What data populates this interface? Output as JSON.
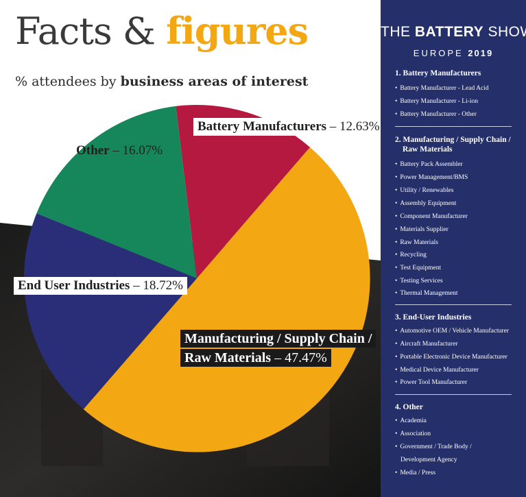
{
  "title": {
    "part1": "Facts & ",
    "part2": "figures"
  },
  "subtitle": {
    "prefix": "% attendees by ",
    "bold": "business areas of interest"
  },
  "colors": {
    "accent": "#f3a712",
    "panel": "#25306b",
    "battery": "#b5193f",
    "manufacturing": "#f3a712",
    "end_user": "#2a2e78",
    "other": "#16875a"
  },
  "chart_data": {
    "type": "pie",
    "series": [
      {
        "name": "Battery Manufacturers",
        "value": 12.63,
        "label": "12.63%",
        "color": "#b5193f"
      },
      {
        "name": "Manufacturing / Supply Chain / Raw Materials",
        "line1": "Manufacturing / Supply Chain /",
        "line2": "Raw Materials",
        "value": 47.47,
        "label": "47.47%",
        "color": "#f3a712"
      },
      {
        "name": "End User Industries",
        "value": 18.72,
        "label": "18.72%",
        "color": "#2a2e78"
      },
      {
        "name": "Other",
        "value": 16.07,
        "label": "16.07%",
        "color": "#16875a"
      }
    ]
  },
  "panel": {
    "brand": {
      "pre": "THE ",
      "bold": "BATTERY",
      "post": " SHOW"
    },
    "edition": {
      "text": "EUROPE ",
      "year": "2019"
    },
    "sections": [
      {
        "heading": "1. Battery Manufacturers",
        "items": [
          "Battery Manufacturer - Lead Acid",
          "Battery Manufacturer - Li-ion",
          "Battery Manufacturer - Other"
        ]
      },
      {
        "heading": "2. Manufacturing / Supply Chain /",
        "heading2": "Raw Materials",
        "items": [
          "Battery Pack Assembler",
          "Power Management/BMS",
          "Utility / Renewables",
          "Assembly Equipment",
          "Component Manufacturer",
          "Materials Supplier",
          "Raw Materials",
          "Recycling",
          "Test Equipment",
          "Testing Services",
          "Thermal Management"
        ]
      },
      {
        "heading": "3. End-User Industries",
        "items": [
          "Automotive OEM / Vehicle Manufacturer",
          "Aircraft Manufacturer",
          "Portable Electronic Device Manufacturer",
          "Medical Device Manufacturer",
          "Power Tool Manufacturer"
        ]
      },
      {
        "heading": "4. Other",
        "items": [
          "Academia",
          "Association",
          "Government / Trade Body /",
          "Development Agency",
          "Media / Press"
        ]
      }
    ]
  }
}
